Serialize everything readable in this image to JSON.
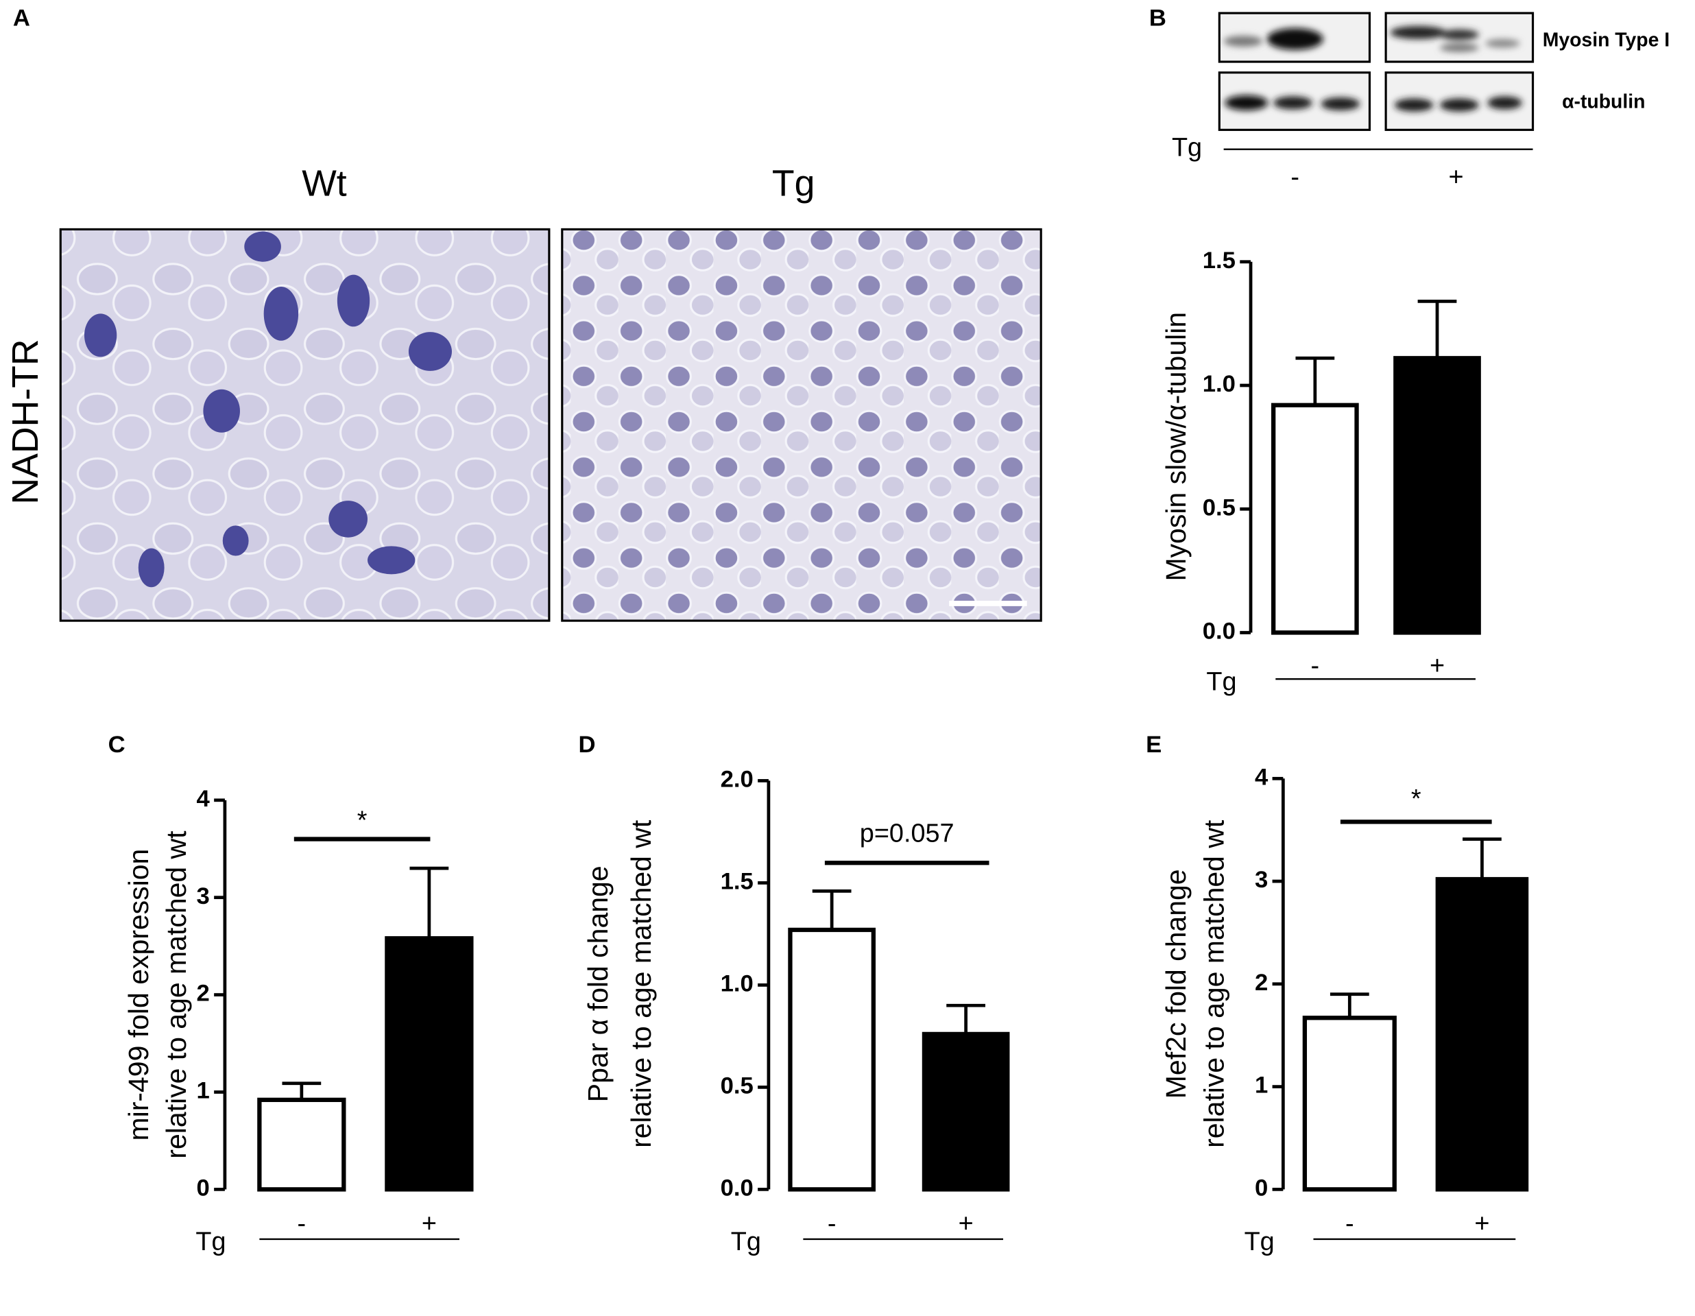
{
  "panel_labels": [
    "A",
    "B",
    "C",
    "D",
    "E"
  ],
  "histology": {
    "row_label": "NADH-TR",
    "columns": [
      "Wt",
      "Tg"
    ]
  },
  "blot": {
    "bands": [
      "Myosin Type I",
      "α-tubulin"
    ],
    "group_label": "Tg",
    "groups": [
      "-",
      "+"
    ]
  },
  "chart_data": [
    {
      "type": "bar",
      "ylabel": [
        "Myosin slow/α-tubulin"
      ],
      "xlabel": "Tg",
      "categories": [
        "-",
        "+"
      ],
      "values": [
        0.92,
        1.11
      ],
      "errors": [
        0.19,
        0.23
      ],
      "colors": [
        "#ffffff",
        "#000000"
      ],
      "ylim": [
        0,
        1.5
      ],
      "yticks": [
        {
          "value": 0,
          "label": "0.0"
        },
        0.5,
        {
          "value": 1,
          "label": "1.0"
        },
        1.5
      ]
    },
    {
      "type": "bar",
      "ylabel": [
        "mir-499 fold expression",
        "relative to age matched wt"
      ],
      "xlabel": "Tg",
      "categories": [
        "-",
        "+"
      ],
      "values": [
        0.92,
        2.58
      ],
      "errors": [
        0.17,
        0.72
      ],
      "colors": [
        "#ffffff",
        "#000000"
      ],
      "ylim": [
        0,
        4
      ],
      "yticks": [
        0,
        1,
        2,
        3,
        4
      ],
      "annotation": "*"
    },
    {
      "type": "bar",
      "ylabel": [
        "Ppar α fold change",
        "relative to age matched wt"
      ],
      "xlabel": "Tg",
      "categories": [
        "-",
        "+"
      ],
      "values": [
        1.27,
        0.76
      ],
      "errors": [
        0.19,
        0.14
      ],
      "colors": [
        "#ffffff",
        "#000000"
      ],
      "ylim": [
        0,
        2
      ],
      "yticks": [
        {
          "value": 0,
          "label": "0.0"
        },
        0.5,
        {
          "value": 1,
          "label": "1.0"
        },
        1.5,
        {
          "value": 2,
          "label": "2.0"
        }
      ],
      "annotation": "p=0.057"
    },
    {
      "type": "bar",
      "ylabel": [
        "Mef2c fold change",
        "relative to age matched wt"
      ],
      "xlabel": "Tg",
      "categories": [
        "-",
        "+"
      ],
      "values": [
        1.67,
        3.02
      ],
      "errors": [
        0.23,
        0.39
      ],
      "colors": [
        "#ffffff",
        "#000000"
      ],
      "ylim": [
        0,
        4
      ],
      "yticks": [
        0,
        1,
        2,
        3,
        4
      ],
      "annotation": "*"
    }
  ]
}
